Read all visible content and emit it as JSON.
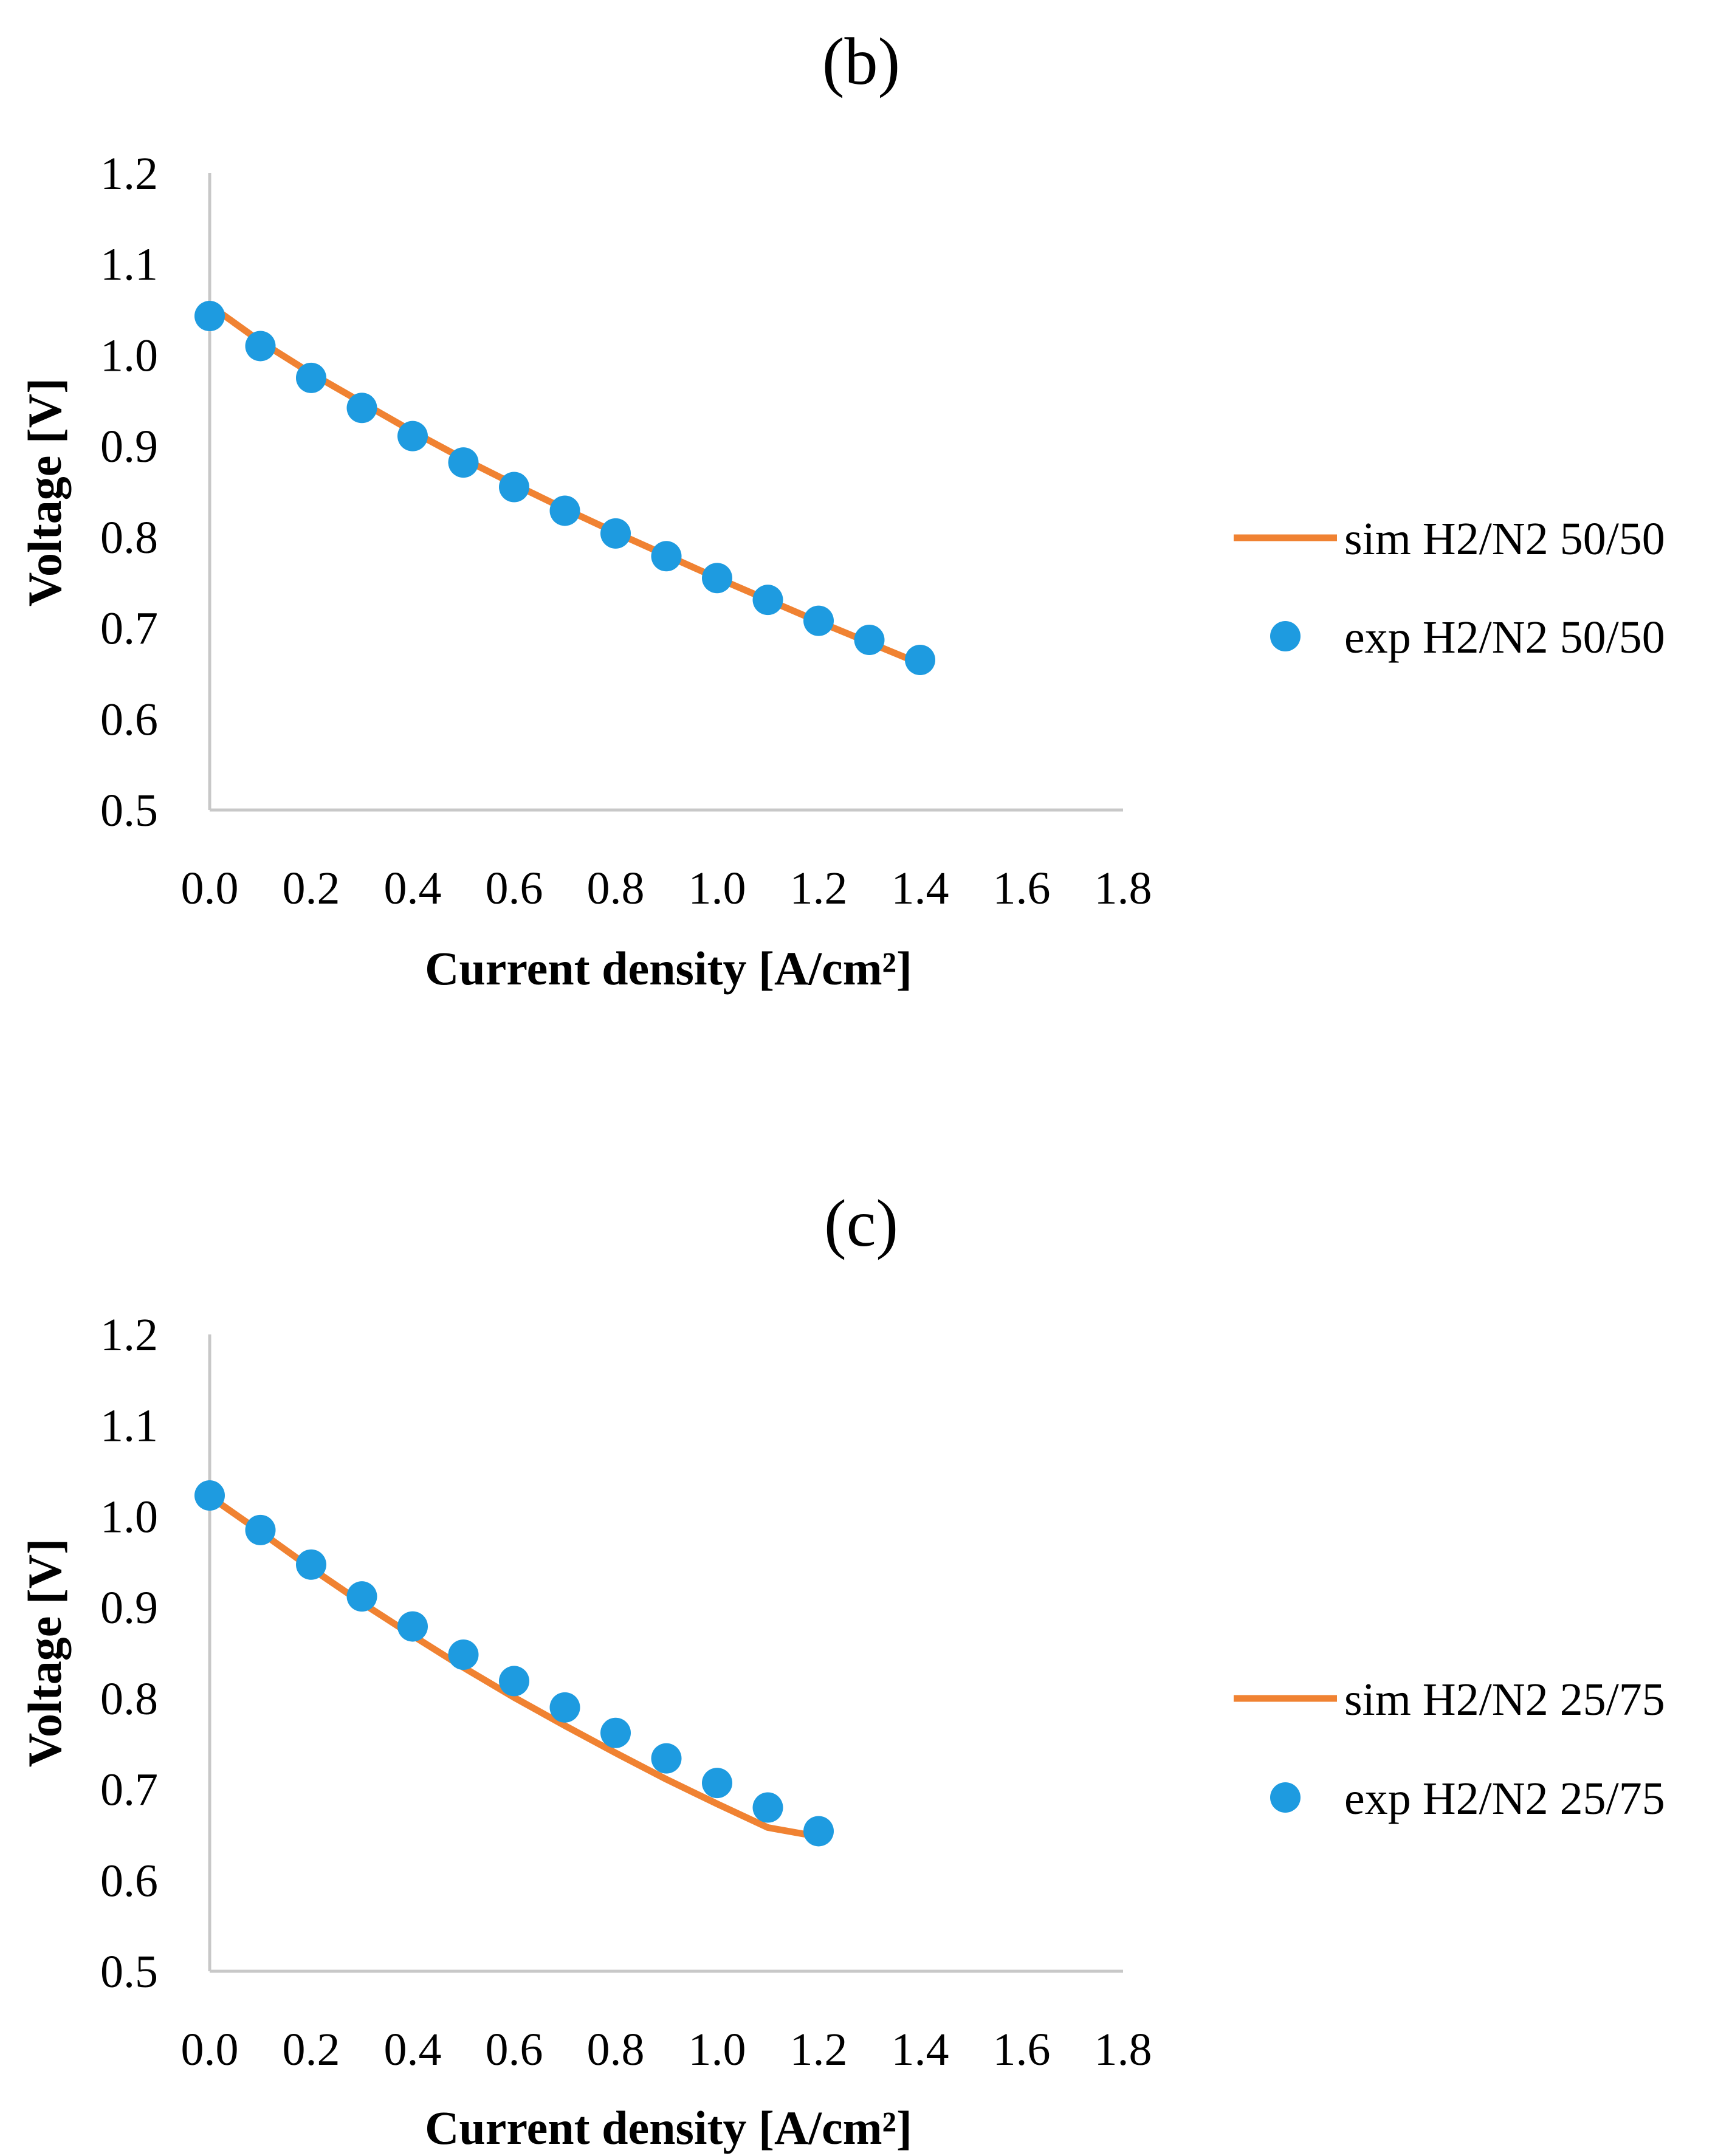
{
  "colors": {
    "sim": "#f08232",
    "exp": "#1e9be0",
    "axis": "#c8c8c8"
  },
  "chart_data": [
    {
      "type": "scatter",
      "title": "(b)",
      "xlabel": "Current density [A/cm²]",
      "ylabel": "Voltage [V]",
      "xlim": [
        0,
        1.8
      ],
      "ylim": [
        0.5,
        1.2
      ],
      "xticks": [
        "0.0",
        "0.2",
        "0.4",
        "0.6",
        "0.8",
        "1.0",
        "1.2",
        "1.4",
        "1.6",
        "1.8"
      ],
      "yticks": [
        "0.5",
        "0.6",
        "0.7",
        "0.8",
        "0.9",
        "1.0",
        "1.1",
        "1.2"
      ],
      "grid": false,
      "legend_position": "right",
      "series": [
        {
          "name": "sim H2/N2 50/50",
          "kind": "line",
          "x": [
            0.0,
            0.1,
            0.2,
            0.3,
            0.4,
            0.5,
            0.6,
            0.7,
            0.8,
            0.9,
            1.0,
            1.1,
            1.2,
            1.3,
            1.4
          ],
          "y": [
            1.055,
            1.015,
            0.98,
            0.948,
            0.916,
            0.886,
            0.858,
            0.831,
            0.805,
            0.78,
            0.755,
            0.731,
            0.707,
            0.684,
            0.661
          ]
        },
        {
          "name": "exp H2/N2 50/50",
          "kind": "scatter",
          "x": [
            0.0,
            0.1,
            0.2,
            0.3,
            0.4,
            0.5,
            0.6,
            0.7,
            0.8,
            0.9,
            1.0,
            1.1,
            1.2,
            1.3,
            1.4
          ],
          "y": [
            1.043,
            1.01,
            0.975,
            0.942,
            0.911,
            0.882,
            0.855,
            0.829,
            0.804,
            0.779,
            0.755,
            0.731,
            0.708,
            0.687,
            0.665
          ]
        }
      ]
    },
    {
      "type": "scatter",
      "title": "(c)",
      "xlabel": "Current density [A/cm²]",
      "ylabel": "Voltage [V]",
      "xlim": [
        0,
        1.8
      ],
      "ylim": [
        0.5,
        1.2
      ],
      "xticks": [
        "0.0",
        "0.2",
        "0.4",
        "0.6",
        "0.8",
        "1.0",
        "1.2",
        "1.4",
        "1.6",
        "1.8"
      ],
      "yticks": [
        "0.5",
        "0.6",
        "0.7",
        "0.8",
        "0.9",
        "1.0",
        "1.1",
        "1.2"
      ],
      "grid": false,
      "legend_position": "right",
      "series": [
        {
          "name": "sim H2/N2 25/75",
          "kind": "line",
          "x": [
            0.0,
            0.1,
            0.2,
            0.3,
            0.4,
            0.5,
            0.6,
            0.7,
            0.8,
            0.9,
            1.0,
            1.1,
            1.2
          ],
          "y": [
            1.022,
            0.983,
            0.943,
            0.905,
            0.869,
            0.834,
            0.801,
            0.77,
            0.74,
            0.711,
            0.684,
            0.658,
            0.648
          ]
        },
        {
          "name": "exp H2/N2 25/75",
          "kind": "scatter",
          "x": [
            0.0,
            0.1,
            0.2,
            0.3,
            0.4,
            0.5,
            0.6,
            0.7,
            0.8,
            0.9,
            1.0,
            1.1,
            1.2
          ],
          "y": [
            1.023,
            0.985,
            0.947,
            0.912,
            0.879,
            0.848,
            0.819,
            0.79,
            0.762,
            0.734,
            0.707,
            0.68,
            0.654
          ]
        }
      ]
    }
  ]
}
